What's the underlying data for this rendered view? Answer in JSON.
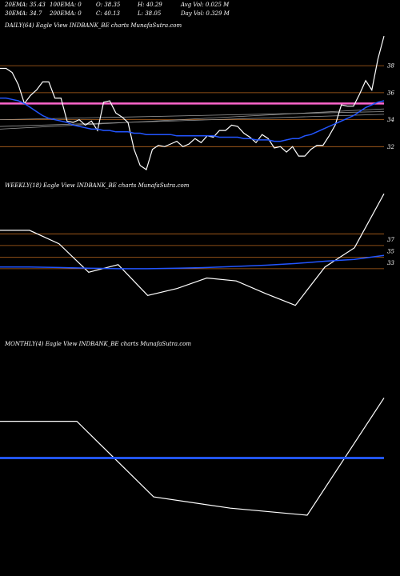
{
  "header": {
    "row1": [
      "20EMA: 35.43",
      "100EMA: 0",
      "O: 38.35",
      "H: 40.29",
      "Avg Vol: 0.025 M"
    ],
    "row2": [
      "30EMA: 34.7",
      "200EMA: 0",
      "C: 40.13",
      "L: 38.05",
      "Day Vol: 0.329 M"
    ]
  },
  "colors": {
    "background": "#000000",
    "price": "#ffffff",
    "ema": "#2255ff",
    "level_line": "#b5651d",
    "pink_line": "#ff66cc",
    "grey_line": "#999999"
  },
  "chart_data": [
    {
      "type": "line",
      "title": "DAILY(64) Eagle   View  INDBANK_BE charts MunafaSutra.com",
      "ylim": [
        30.3,
        40.5
      ],
      "yticks": [
        32,
        34,
        36,
        38
      ],
      "level_lines": [
        38,
        36,
        34,
        32
      ],
      "pink_line": 35.2,
      "grey_lines": [
        {
          "from": 33.5,
          "to": 34.4
        },
        {
          "from": 33.3,
          "to": 34.8
        },
        {
          "from": 34.0,
          "to": 34.6
        }
      ],
      "series": [
        {
          "values": [
            37.8,
            37.8,
            37.5,
            36.6,
            35.2,
            35.8,
            36.2,
            36.8,
            36.8,
            35.6,
            35.6,
            33.9,
            33.8,
            34.0,
            33.6,
            33.9,
            33.2,
            35.3,
            35.4,
            34.5,
            34.2,
            33.8,
            31.8,
            30.6,
            30.3,
            31.8,
            32.1,
            32.0,
            32.2,
            32.4,
            32.0,
            32.2,
            32.6,
            32.3,
            32.8,
            32.7,
            33.2,
            33.2,
            33.6,
            33.5,
            33.0,
            32.7,
            32.3,
            32.9,
            32.6,
            31.9,
            32.0,
            31.6,
            32.0,
            31.3,
            31.3,
            31.8,
            32.1,
            32.1,
            32.8,
            33.6,
            35.1,
            35.0,
            35.0,
            35.9,
            36.9,
            36.2,
            38.5,
            40.2
          ]
        },
        {
          "values": [
            35.6,
            35.6,
            35.5,
            35.4,
            35.2,
            34.9,
            34.6,
            34.3,
            34.1,
            34.0,
            33.9,
            33.8,
            33.6,
            33.5,
            33.4,
            33.3,
            33.3,
            33.2,
            33.2,
            33.1,
            33.1,
            33.1,
            33.0,
            33.0,
            32.9,
            32.9,
            32.9,
            32.9,
            32.9,
            32.8,
            32.8,
            32.8,
            32.8,
            32.8,
            32.8,
            32.8,
            32.7,
            32.7,
            32.7,
            32.7,
            32.6,
            32.6,
            32.5,
            32.5,
            32.5,
            32.4,
            32.4,
            32.5,
            32.6,
            32.6,
            32.8,
            32.9,
            33.1,
            33.3,
            33.5,
            33.7,
            33.9,
            34.1,
            34.3,
            34.6,
            34.9,
            35.1,
            35.3,
            35.4
          ]
        }
      ]
    },
    {
      "type": "line",
      "title": "WEEKLY(18) Eagle   View  INDBANK_BE charts MunafaSutra.com",
      "ylim": [
        21.8,
        45.2
      ],
      "yticks": [
        37,
        35,
        33
      ],
      "ytick_labels": [
        "37",
        "35",
        "33"
      ],
      "level_lines": [
        38,
        36,
        34,
        32
      ],
      "series": [
        {
          "values": [
            38.6,
            38.6,
            36.3,
            31.4,
            32.7,
            27.4,
            28.6,
            30.4,
            29.9,
            27.7,
            25.7,
            32.3,
            35.6,
            44.9
          ]
        },
        {
          "values": [
            32.3,
            32.3,
            32.2,
            32.1,
            32.0,
            32.0,
            32.1,
            32.2,
            32.4,
            32.6,
            32.9,
            33.3,
            33.6,
            34.3
          ]
        }
      ]
    },
    {
      "type": "line",
      "title": "MONTHLY(4) Eagle   View  INDBANK_BE charts MunafaSutra.com",
      "ylim": [
        20,
        50
      ],
      "yticks": [],
      "level_lines": [],
      "series": [
        {
          "values": [
            40.2,
            40.2,
            29.5,
            27.9,
            26.9,
            43.5
          ]
        },
        {
          "values": [
            35.0,
            35.0,
            35.0,
            35.0,
            35.0,
            35.0
          ]
        }
      ]
    }
  ]
}
